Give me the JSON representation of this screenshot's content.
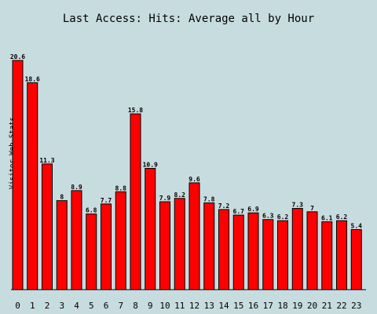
{
  "chart_data": {
    "type": "bar",
    "title": "Last Access: Hits: Average all by Hour",
    "ylabel": "Visitor Web Stats",
    "xlabel": "",
    "categories": [
      "0",
      "1",
      "2",
      "3",
      "4",
      "5",
      "6",
      "7",
      "8",
      "9",
      "10",
      "11",
      "12",
      "13",
      "14",
      "15",
      "16",
      "17",
      "18",
      "19",
      "20",
      "21",
      "22",
      "23"
    ],
    "values": [
      20.6,
      18.6,
      11.3,
      8,
      8.9,
      6.8,
      7.7,
      8.8,
      15.8,
      10.9,
      7.9,
      8.2,
      9.6,
      7.8,
      7.2,
      6.7,
      6.9,
      6.3,
      6.2,
      7.3,
      7,
      6.1,
      6.2,
      5.4
    ],
    "value_labels": [
      "20.6",
      "18.6",
      "11.3",
      "8",
      "8.9",
      "6.8",
      "7.7",
      "8.8",
      "15.8",
      "10.9",
      "7.9",
      "8.2",
      "9.6",
      "7.8",
      "7.2",
      "6.7",
      "6.9",
      "6.3",
      "6.2",
      "7.3",
      "7",
      "6.1",
      "6.2",
      "5.4"
    ],
    "ylim": [
      0,
      20.6
    ],
    "grid": false,
    "legend": "none",
    "colors": {
      "background": "#c7dcdf",
      "bar_fill": "#ff0000",
      "bar_stroke": "#000000",
      "axis": "#000000",
      "text": "#000000"
    }
  }
}
